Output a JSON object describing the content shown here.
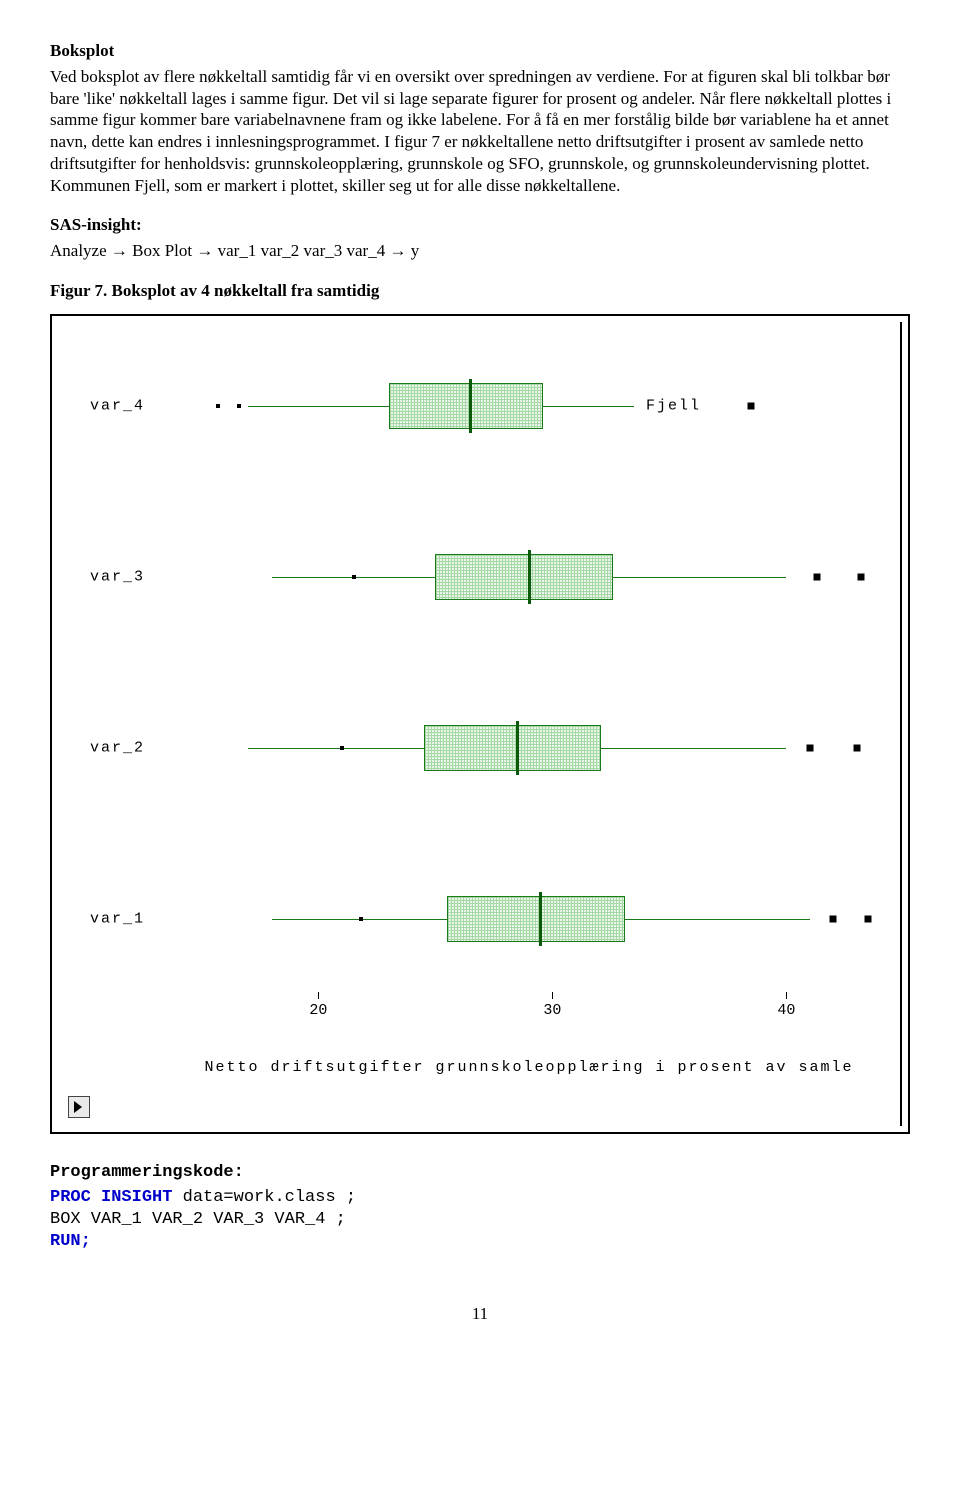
{
  "heading": "Boksplot",
  "para1": "Ved boksplot av flere nøkkeltall samtidig får vi en oversikt over spredningen av verdiene. For at figuren skal bli tolkbar bør bare 'like' nøkkeltall lages i samme figur. Det vil si lage separate figurer for prosent og andeler. Når flere nøkkeltall plottes i samme figur kommer bare variabelnavnene fram og ikke labelene. For å få en mer forstålig bilde bør variablene ha et annet navn, dette kan endres i innlesningsprogrammet. I figur 7 er nøkkeltallene netto driftsutgifter i prosent av samlede netto driftsutgifter for henholdsvis: grunnskoleopplæring, grunnskole og SFO, grunnskole, og grunnskoleundervisning plottet. Kommunen Fjell, som er markert i plottet, skiller seg ut for alle disse nøkkeltallene.",
  "sas_label": "SAS-insight:",
  "sas_line_prefix": "Analyze ",
  "sas_line_mid1": " Box Plot ",
  "sas_line_mid2": " var_1 var_2 var_3 var_4 ",
  "sas_line_end": " y",
  "fig_caption": "Figur 7. Boksplot av 4 nøkkeltall fra samtidig",
  "chart": {
    "type": "boxplot",
    "orientation": "horizontal",
    "background_color": "#ffffff",
    "box_fill_pattern": "crosshatch",
    "box_border_color": "#1a7a1a",
    "median_color": "#0a5a0a",
    "whisker_color": "#1a7a1a",
    "outlier_marker": "square",
    "outlier_color": "#000000",
    "x_min": 14,
    "x_max": 44,
    "x_ticks": [
      20,
      30,
      40
    ],
    "x_title": "Netto driftsutgifter grunnskoleopplæring i prosent av samle",
    "font_family": "Courier New",
    "label_fontsize": 15,
    "rows": [
      {
        "name": "var_4",
        "top_pct": 3,
        "whisker_lo": 17,
        "q1": 23,
        "median": 26.5,
        "q3": 29.5,
        "whisker_hi": 33.5,
        "outliers_sm": [
          15.7,
          16.6
        ],
        "outliers_lg": [
          38.5
        ],
        "annotation": {
          "text": "Fjell",
          "x": 34
        }
      },
      {
        "name": "var_3",
        "top_pct": 30,
        "whisker_lo": 18,
        "q1": 25,
        "median": 29,
        "q3": 32.5,
        "whisker_hi": 40,
        "outliers_sm": [
          21.5
        ],
        "outliers_lg": [
          41.3,
          43.2
        ]
      },
      {
        "name": "var_2",
        "top_pct": 57,
        "whisker_lo": 17,
        "q1": 24.5,
        "median": 28.5,
        "q3": 32,
        "whisker_hi": 40,
        "outliers_sm": [
          21
        ],
        "outliers_lg": [
          41,
          43
        ]
      },
      {
        "name": "var_1",
        "top_pct": 84,
        "whisker_lo": 18,
        "q1": 25.5,
        "median": 29.5,
        "q3": 33,
        "whisker_hi": 41,
        "outliers_sm": [
          21.8
        ],
        "outliers_lg": [
          42,
          43.5
        ]
      }
    ]
  },
  "code_heading": "Programmeringskode:",
  "code": {
    "l1a": "PROC INSIGHT",
    "l1b": " data=work.class ;",
    "l2": "BOX VAR_1 VAR_2 VAR_3 VAR_4  ;",
    "l3": "RUN;"
  },
  "page_number": "11"
}
